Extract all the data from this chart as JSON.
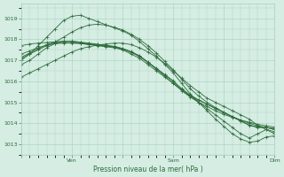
{
  "bg_color": "#d5ede3",
  "grid_color": "#a8cfc0",
  "line_color": "#2d6b3a",
  "marker_color": "#2d6b3a",
  "xlabel": "Pression niveau de la mer( hPa )",
  "xlabel_color": "#2d6b3a",
  "tick_color": "#2d6b3a",
  "ylim": [
    1012.5,
    1019.7
  ],
  "yticks": [
    1013,
    1014,
    1015,
    1016,
    1017,
    1018,
    1019
  ],
  "xtick_labels": [
    "",
    "Ven",
    "",
    "Sam",
    "",
    "Dim"
  ],
  "xtick_positions": [
    0,
    30,
    60,
    90,
    120,
    150
  ],
  "x_total": 150,
  "lines": [
    {
      "pts": [
        [
          0,
          1016.8
        ],
        [
          5,
          1017.0
        ],
        [
          10,
          1017.3
        ],
        [
          15,
          1017.6
        ],
        [
          20,
          1017.8
        ],
        [
          25,
          1017.85
        ],
        [
          30,
          1017.85
        ],
        [
          35,
          1017.8
        ],
        [
          40,
          1017.75
        ],
        [
          45,
          1017.7
        ],
        [
          50,
          1017.65
        ],
        [
          55,
          1017.6
        ],
        [
          60,
          1017.5
        ],
        [
          65,
          1017.3
        ],
        [
          70,
          1017.1
        ],
        [
          75,
          1016.8
        ],
        [
          80,
          1016.5
        ],
        [
          85,
          1016.2
        ],
        [
          90,
          1015.9
        ],
        [
          95,
          1015.6
        ],
        [
          100,
          1015.3
        ],
        [
          105,
          1015.0
        ],
        [
          110,
          1014.7
        ],
        [
          115,
          1014.4
        ],
        [
          120,
          1014.1
        ],
        [
          125,
          1013.8
        ],
        [
          130,
          1013.5
        ],
        [
          135,
          1013.3
        ],
        [
          140,
          1013.5
        ],
        [
          145,
          1013.7
        ],
        [
          150,
          1013.6
        ]
      ]
    },
    {
      "pts": [
        [
          0,
          1017.1
        ],
        [
          5,
          1017.3
        ],
        [
          10,
          1017.5
        ],
        [
          15,
          1017.7
        ],
        [
          20,
          1017.85
        ],
        [
          25,
          1017.9
        ],
        [
          30,
          1017.9
        ],
        [
          35,
          1017.85
        ],
        [
          40,
          1017.8
        ],
        [
          45,
          1017.75
        ],
        [
          50,
          1017.7
        ],
        [
          55,
          1017.65
        ],
        [
          60,
          1017.55
        ],
        [
          65,
          1017.4
        ],
        [
          70,
          1017.2
        ],
        [
          75,
          1016.9
        ],
        [
          80,
          1016.6
        ],
        [
          85,
          1016.3
        ],
        [
          90,
          1016.0
        ],
        [
          95,
          1015.6
        ],
        [
          100,
          1015.3
        ],
        [
          105,
          1015.1
        ],
        [
          110,
          1014.9
        ],
        [
          115,
          1014.7
        ],
        [
          120,
          1014.5
        ],
        [
          125,
          1014.3
        ],
        [
          130,
          1014.1
        ],
        [
          135,
          1013.9
        ],
        [
          140,
          1013.8
        ],
        [
          145,
          1013.8
        ],
        [
          150,
          1013.7
        ]
      ]
    },
    {
      "pts": [
        [
          0,
          1017.15
        ],
        [
          5,
          1017.35
        ],
        [
          10,
          1017.55
        ],
        [
          15,
          1017.75
        ],
        [
          20,
          1017.88
        ],
        [
          25,
          1017.92
        ],
        [
          30,
          1017.92
        ],
        [
          35,
          1017.87
        ],
        [
          40,
          1017.82
        ],
        [
          45,
          1017.77
        ],
        [
          50,
          1017.72
        ],
        [
          55,
          1017.67
        ],
        [
          60,
          1017.57
        ],
        [
          65,
          1017.42
        ],
        [
          70,
          1017.22
        ],
        [
          75,
          1016.92
        ],
        [
          80,
          1016.62
        ],
        [
          85,
          1016.32
        ],
        [
          90,
          1016.02
        ],
        [
          95,
          1015.65
        ],
        [
          100,
          1015.35
        ],
        [
          105,
          1015.12
        ],
        [
          110,
          1014.92
        ],
        [
          115,
          1014.72
        ],
        [
          120,
          1014.52
        ],
        [
          125,
          1014.32
        ],
        [
          130,
          1014.12
        ],
        [
          135,
          1013.92
        ],
        [
          140,
          1013.82
        ],
        [
          145,
          1013.82
        ],
        [
          150,
          1013.72
        ]
      ]
    },
    {
      "pts": [
        [
          0,
          1017.0
        ],
        [
          5,
          1017.3
        ],
        [
          10,
          1017.7
        ],
        [
          15,
          1018.1
        ],
        [
          20,
          1018.5
        ],
        [
          25,
          1018.9
        ],
        [
          30,
          1019.1
        ],
        [
          35,
          1019.15
        ],
        [
          40,
          1019.0
        ],
        [
          45,
          1018.85
        ],
        [
          50,
          1018.7
        ],
        [
          55,
          1018.55
        ],
        [
          60,
          1018.4
        ],
        [
          65,
          1018.2
        ],
        [
          70,
          1017.9
        ],
        [
          75,
          1017.55
        ],
        [
          80,
          1017.2
        ],
        [
          85,
          1016.8
        ],
        [
          90,
          1016.4
        ],
        [
          95,
          1015.9
        ],
        [
          100,
          1015.4
        ],
        [
          105,
          1015.0
        ],
        [
          110,
          1014.6
        ],
        [
          115,
          1014.2
        ],
        [
          120,
          1013.85
        ],
        [
          125,
          1013.5
        ],
        [
          130,
          1013.25
        ],
        [
          135,
          1013.1
        ],
        [
          140,
          1013.15
        ],
        [
          145,
          1013.35
        ],
        [
          150,
          1013.4
        ]
      ]
    },
    {
      "pts": [
        [
          0,
          1016.2
        ],
        [
          5,
          1016.4
        ],
        [
          10,
          1016.6
        ],
        [
          15,
          1016.8
        ],
        [
          20,
          1017.0
        ],
        [
          25,
          1017.2
        ],
        [
          30,
          1017.4
        ],
        [
          35,
          1017.55
        ],
        [
          40,
          1017.65
        ],
        [
          45,
          1017.72
        ],
        [
          50,
          1017.78
        ],
        [
          55,
          1017.82
        ],
        [
          60,
          1017.82
        ],
        [
          65,
          1017.75
        ],
        [
          70,
          1017.6
        ],
        [
          75,
          1017.4
        ],
        [
          80,
          1017.15
        ],
        [
          85,
          1016.85
        ],
        [
          90,
          1016.5
        ],
        [
          95,
          1016.15
        ],
        [
          100,
          1015.8
        ],
        [
          105,
          1015.5
        ],
        [
          110,
          1015.2
        ],
        [
          115,
          1015.0
        ],
        [
          120,
          1014.8
        ],
        [
          125,
          1014.6
        ],
        [
          130,
          1014.4
        ],
        [
          135,
          1014.2
        ],
        [
          140,
          1013.9
        ],
        [
          145,
          1013.7
        ],
        [
          150,
          1013.5
        ]
      ]
    },
    {
      "pts": [
        [
          0,
          1017.3
        ],
        [
          5,
          1017.45
        ],
        [
          10,
          1017.6
        ],
        [
          15,
          1017.72
        ],
        [
          20,
          1017.8
        ],
        [
          25,
          1017.82
        ],
        [
          30,
          1017.82
        ],
        [
          35,
          1017.8
        ],
        [
          40,
          1017.77
        ],
        [
          45,
          1017.73
        ],
        [
          50,
          1017.68
        ],
        [
          55,
          1017.63
        ],
        [
          60,
          1017.53
        ],
        [
          65,
          1017.38
        ],
        [
          70,
          1017.18
        ],
        [
          75,
          1016.9
        ],
        [
          80,
          1016.58
        ],
        [
          85,
          1016.25
        ],
        [
          90,
          1015.9
        ],
        [
          95,
          1015.55
        ],
        [
          100,
          1015.25
        ],
        [
          105,
          1015.0
        ],
        [
          110,
          1014.8
        ],
        [
          115,
          1014.6
        ],
        [
          120,
          1014.42
        ],
        [
          125,
          1014.28
        ],
        [
          130,
          1014.15
        ],
        [
          135,
          1014.05
        ],
        [
          140,
          1013.95
        ],
        [
          145,
          1013.88
        ],
        [
          150,
          1013.82
        ]
      ]
    },
    {
      "pts": [
        [
          0,
          1017.7
        ],
        [
          5,
          1017.78
        ],
        [
          10,
          1017.82
        ],
        [
          15,
          1017.85
        ],
        [
          20,
          1017.88
        ],
        [
          25,
          1018.1
        ],
        [
          30,
          1018.35
        ],
        [
          35,
          1018.55
        ],
        [
          40,
          1018.68
        ],
        [
          45,
          1018.72
        ],
        [
          50,
          1018.68
        ],
        [
          55,
          1018.58
        ],
        [
          60,
          1018.45
        ],
        [
          65,
          1018.25
        ],
        [
          70,
          1018.0
        ],
        [
          75,
          1017.7
        ],
        [
          80,
          1017.35
        ],
        [
          85,
          1016.95
        ],
        [
          90,
          1016.55
        ],
        [
          95,
          1016.1
        ],
        [
          100,
          1015.65
        ],
        [
          105,
          1015.3
        ],
        [
          110,
          1015.0
        ],
        [
          115,
          1014.75
        ],
        [
          120,
          1014.52
        ],
        [
          125,
          1014.32
        ],
        [
          130,
          1014.15
        ],
        [
          135,
          1014.0
        ],
        [
          140,
          1013.88
        ],
        [
          145,
          1013.8
        ],
        [
          150,
          1013.75
        ]
      ]
    }
  ]
}
